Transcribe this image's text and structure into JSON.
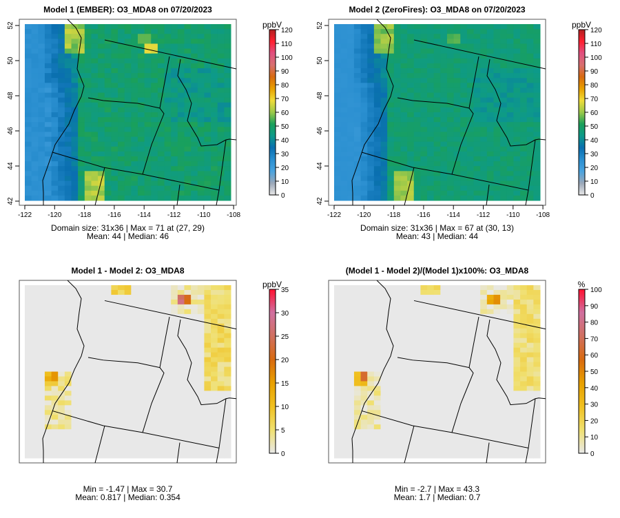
{
  "panels": [
    {
      "title": "Model 1 (EMBER): O3_MDA8 on 07/20/2023",
      "unit": "ppbV",
      "stats1": "Domain size: 31x36 | Max = 71 at (27, 29)",
      "stats2": "Mean: 44 |  Median: 46",
      "scale": "abs",
      "ticks": [
        "0",
        "10",
        "20",
        "30",
        "40",
        "50",
        "60",
        "70",
        "80",
        "90",
        "100",
        "110",
        "120"
      ],
      "axes": true
    },
    {
      "title": "Model 2 (ZeroFires): O3_MDA8 on 07/20/2023",
      "unit": "ppbV",
      "stats1": "Domain size: 31x36 | Max = 67 at (30, 13)",
      "stats2": "Mean: 43 |  Median: 44",
      "scale": "abs",
      "ticks": [
        "0",
        "10",
        "20",
        "30",
        "40",
        "50",
        "60",
        "70",
        "80",
        "90",
        "100",
        "110",
        "120"
      ],
      "axes": true
    },
    {
      "title": "Model 1 - Model 2: O3_MDA8",
      "unit": "ppbV",
      "stats1": "Min = -1.47 | Max = 30.7",
      "stats2": "Mean: 0.817 |  Median: 0.354",
      "scale": "diff",
      "ticks": [
        "0",
        "5",
        "10",
        "15",
        "20",
        "25",
        "30",
        "35"
      ],
      "axes": false
    },
    {
      "title": "(Model 1 - Model 2)/(Model 1)x100%: O3_MDA8",
      "unit": "%",
      "stats1": "Min = -2.7 | Max = 43.3",
      "stats2": "Mean: 1.7 |  Median: 0.7",
      "scale": "pct",
      "ticks": [
        "0",
        "10",
        "20",
        "30",
        "40",
        "50",
        "60",
        "70",
        "80",
        "90",
        "100"
      ],
      "axes": false
    }
  ],
  "lon_ticks": [
    "-122",
    "-120",
    "-118",
    "-116",
    "-114",
    "-112",
    "-110",
    "-108"
  ],
  "lat_ticks": [
    "42",
    "44",
    "46",
    "48",
    "50",
    "52"
  ],
  "palettes": {
    "abs": [
      "#e8e8e8",
      "#9aa7b8",
      "#4aa3df",
      "#2a8fd0",
      "#0a6fb0",
      "#0d9a8a",
      "#1aa05a",
      "#9cc94a",
      "#f0dc3a",
      "#e8a000",
      "#d86a10",
      "#d87070",
      "#e05080",
      "#ff2030",
      "#b02020"
    ],
    "diff": [
      "#e8e8e8",
      "#f0e070",
      "#f0c020",
      "#e8a000",
      "#d86a10",
      "#d07060",
      "#d070a0",
      "#ff1030"
    ]
  }
}
